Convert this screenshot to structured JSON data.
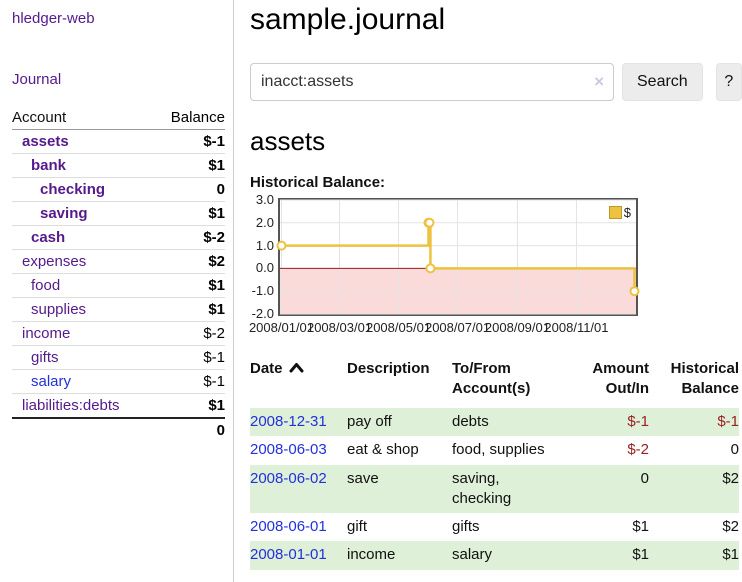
{
  "colors": {
    "link_purple": "#551a8b",
    "link_blue": "#2230dd",
    "negative_strong": "#8b1212",
    "negative_soft": "#c17d7d",
    "negative_table": "#992121",
    "row_stripe_green": "#dff0d8",
    "series_yellow": "#edc240"
  },
  "brand": "hledger-web",
  "nav": {
    "journal": "Journal"
  },
  "sidebar": {
    "header": {
      "account": "Account",
      "balance": "Balance"
    },
    "accounts": [
      {
        "name": "assets",
        "balance": "$-1"
      },
      {
        "name": "bank",
        "balance": "$1"
      },
      {
        "name": "checking",
        "balance": "0"
      },
      {
        "name": "saving",
        "balance": "$1"
      },
      {
        "name": "cash",
        "balance": "$-2"
      },
      {
        "name": "expenses",
        "balance": "$2"
      },
      {
        "name": "food",
        "balance": "$1"
      },
      {
        "name": "supplies",
        "balance": "$1"
      },
      {
        "name": "income",
        "balance": "$-2"
      },
      {
        "name": "gifts",
        "balance": "$-1"
      },
      {
        "name": "salary",
        "balance": "$-1"
      },
      {
        "name": "liabilities:debts",
        "balance": "$1"
      }
    ],
    "total": "0"
  },
  "page": {
    "title": "sample.journal",
    "account_title": "assets",
    "chart_heading": "Historical Balance:"
  },
  "search": {
    "value": "inacct:assets",
    "clear": "×",
    "submit": "Search",
    "help": "?"
  },
  "chart_data": {
    "type": "line",
    "step": true,
    "legend": "$",
    "series": [
      {
        "name": "$",
        "color": "#edc240",
        "points": [
          [
            "2008-01-01",
            1
          ],
          [
            "2008-06-01",
            2
          ],
          [
            "2008-06-02",
            2
          ],
          [
            "2008-06-03",
            0
          ],
          [
            "2008-12-31",
            -1
          ]
        ]
      }
    ],
    "xrange": [
      "2008-01-01",
      "2008-12-31"
    ],
    "ylim": [
      -2,
      3
    ],
    "yticks": [
      "3.0",
      "2.0",
      "1.0",
      "0.0",
      "-1.0",
      "-2.0"
    ],
    "xticks": [
      "2008/01/01",
      "2008/03/01",
      "2008/05/01",
      "2008/07/01",
      "2008/09/01",
      "2008/11/01"
    ],
    "negative_region": {
      "from": -2,
      "to": 0,
      "fill": "#fbdada",
      "line_color": "#9b1c1c"
    },
    "grid": true,
    "legend_position": "top-right"
  },
  "register": {
    "columns": {
      "date": "Date",
      "description": "Description",
      "tofrom": "To/From Account(s)",
      "amount": "Amount Out/In",
      "balance": "Historical Balance"
    },
    "rows": [
      {
        "date": "2008-12-31",
        "description": "pay off",
        "accounts": "debts",
        "amount": "$-1",
        "balance": "$-1"
      },
      {
        "date": "2008-06-03",
        "description": "eat & shop",
        "accounts": "food, supplies",
        "amount": "$-2",
        "balance": "0"
      },
      {
        "date": "2008-06-02",
        "description": "save",
        "accounts": "saving, checking",
        "amount": "0",
        "balance": "$2"
      },
      {
        "date": "2008-06-01",
        "description": "gift",
        "accounts": "gifts",
        "amount": "$1",
        "balance": "$2"
      },
      {
        "date": "2008-01-01",
        "description": "income",
        "accounts": "salary",
        "amount": "$1",
        "balance": "$1"
      }
    ]
  }
}
